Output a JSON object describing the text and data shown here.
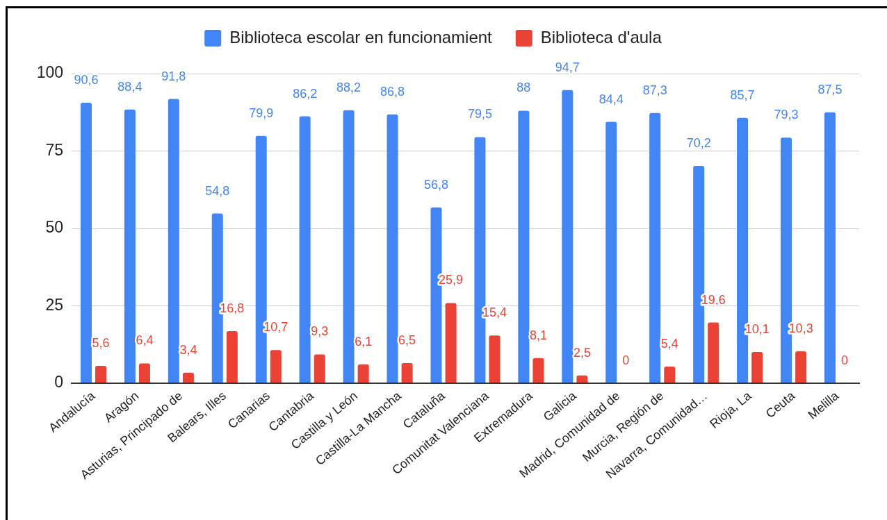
{
  "chart_data": {
    "type": "bar",
    "categories": [
      "Andalucía",
      "Aragón",
      "Asturias, Principado de",
      "Balears, Illes",
      "Canarias",
      "Cantabria",
      "Castilla y León",
      "Castilla-La Mancha",
      "Cataluña",
      "Comunitat Valenciana",
      "Extremadura",
      "Galicia",
      "Madrid, Comunidad de",
      "Murcia, Región de",
      "Navarra, Comunidad…",
      "Rioja, La",
      "Ceuta",
      "Melilla"
    ],
    "series": [
      {
        "name": "Biblioteca escolar en funcionamient",
        "color": "#4285f4",
        "values": [
          90.6,
          88.4,
          91.8,
          54.8,
          79.9,
          86.2,
          88.2,
          86.8,
          56.8,
          79.5,
          88,
          94.7,
          84.4,
          87.3,
          70.2,
          85.7,
          79.3,
          87.5
        ],
        "value_labels": [
          "90,6",
          "88,4",
          "91,8",
          "54,8",
          "79,9",
          "86,2",
          "88,2",
          "86,8",
          "56,8",
          "79,5",
          "88",
          "94,7",
          "84,4",
          "87,3",
          "70,2",
          "85,7",
          "79,3",
          "87,5"
        ]
      },
      {
        "name": "Biblioteca d'aula",
        "color": "#ea4335",
        "values": [
          5.6,
          6.4,
          3.4,
          16.8,
          10.7,
          9.3,
          6.1,
          6.5,
          25.9,
          15.4,
          8.1,
          2.5,
          0,
          5.4,
          19.6,
          10.1,
          10.3,
          0
        ],
        "value_labels": [
          "5,6",
          "6,4",
          "3,4",
          "16,8",
          "10,7",
          "9,3",
          "6,1",
          "6,5",
          "25,9",
          "15,4",
          "8,1",
          "2,5",
          "0",
          "5,4",
          "19,6",
          "10,1",
          "10,3",
          "0"
        ]
      }
    ],
    "ylim": [
      0,
      100
    ],
    "yticks": [
      0,
      25,
      50,
      75,
      100
    ],
    "grid": "y",
    "legend": "top"
  }
}
